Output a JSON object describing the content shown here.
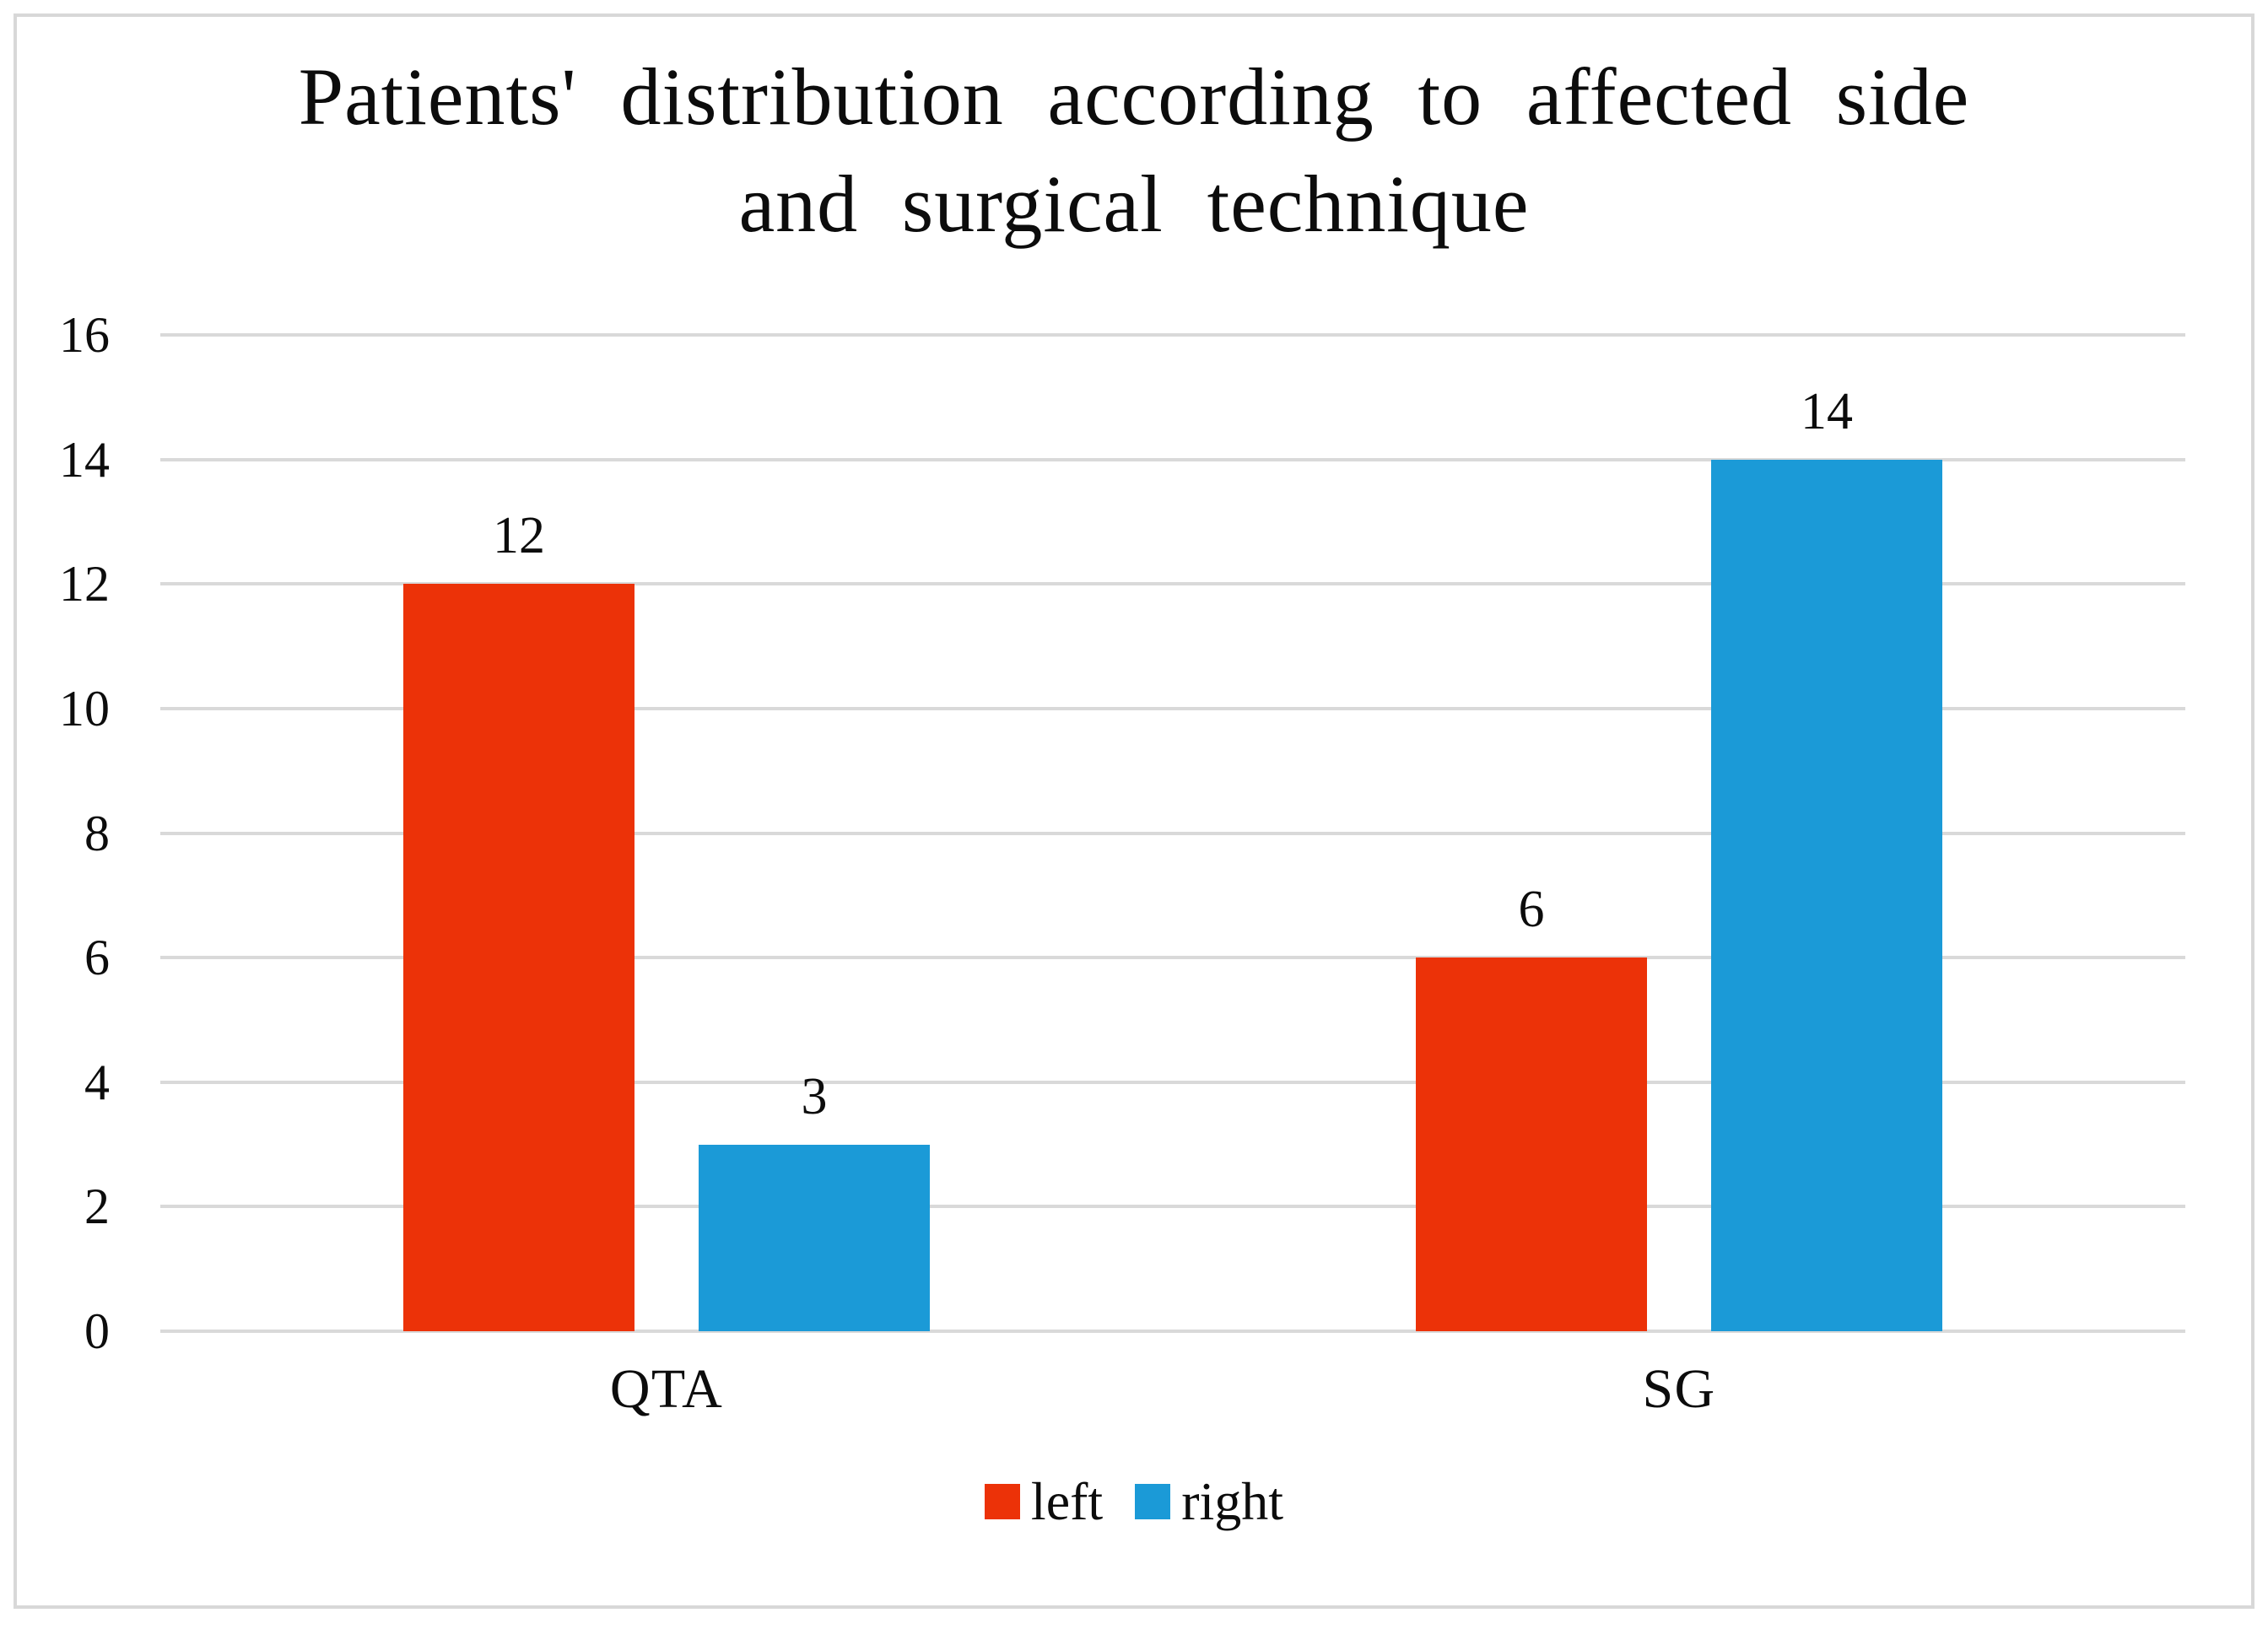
{
  "figure": {
    "background": "#ffffff",
    "border_color": "#d8d8d8"
  },
  "chart_data": {
    "type": "bar",
    "title": "Patients' distribution according to affected side and surgical technique",
    "title_lines": [
      "Patients' distribution according to affected side",
      "and surgical technique"
    ],
    "categories": [
      "QTA",
      "SG"
    ],
    "series": [
      {
        "name": "left",
        "color": "#ec3208",
        "values": [
          12,
          6
        ]
      },
      {
        "name": "right",
        "color": "#1b9ad7",
        "values": [
          3,
          14
        ]
      }
    ],
    "ylim": [
      0,
      16
    ],
    "yticks": [
      0,
      2,
      4,
      6,
      8,
      10,
      12,
      14,
      16
    ],
    "xlabel": "",
    "ylabel": "",
    "grid": "horizontal",
    "gridline_color": "#d9d9d9",
    "value_labels": true,
    "legend_position": "bottom"
  }
}
